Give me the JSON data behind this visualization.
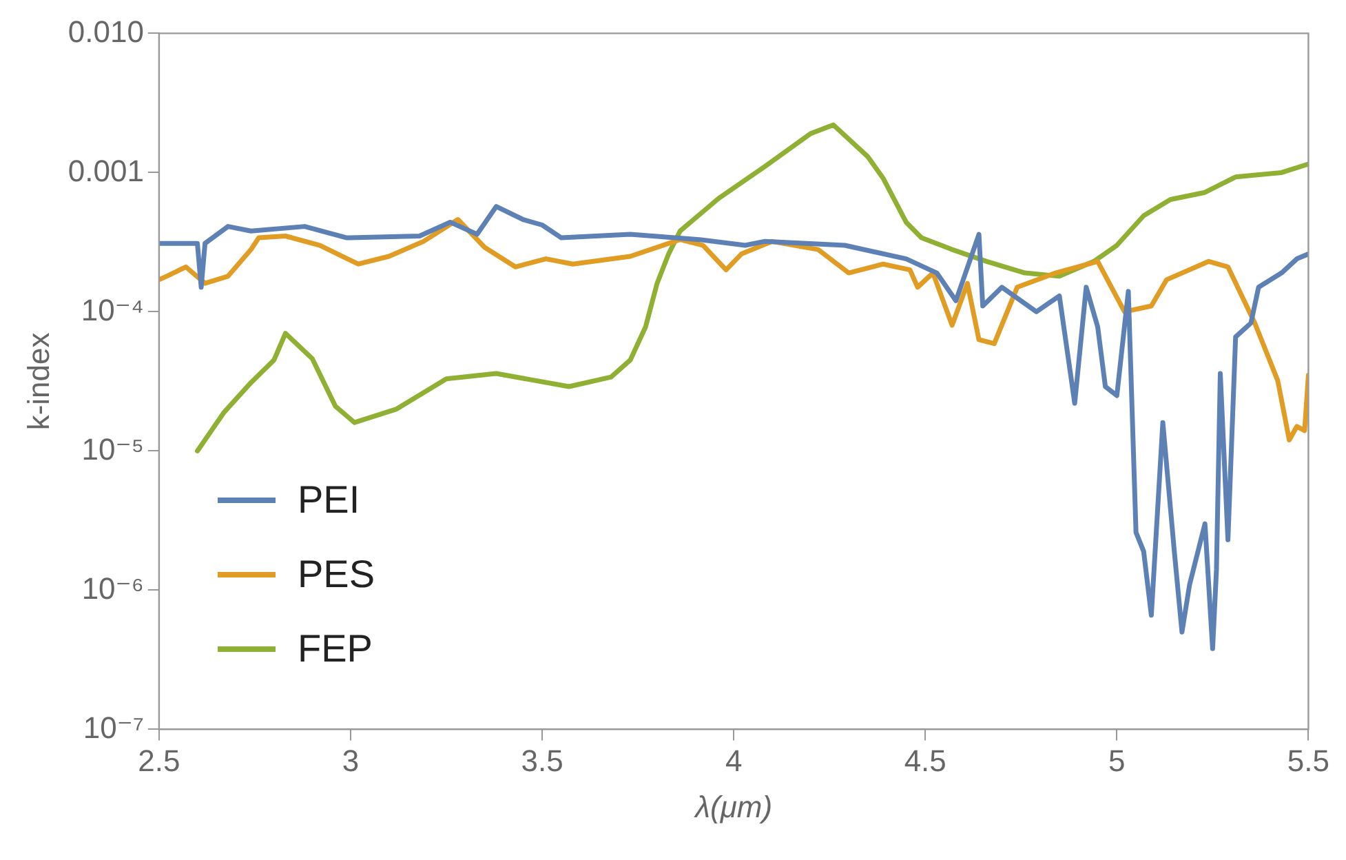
{
  "chart_data": {
    "type": "line",
    "xlabel": "λ(μm)",
    "ylabel": "k-index",
    "log": "y",
    "grid": false,
    "legend": "bottom left",
    "marker": "none",
    "line_style": "solid",
    "xlim": [
      2.5,
      5.5
    ],
    "xticks": [
      2.5,
      3,
      3.5,
      4,
      4.5,
      5,
      5.5
    ],
    "ylim": [
      1e-07,
      0.01
    ],
    "yticks": [
      {
        "value": 0.01,
        "label": "0.010"
      },
      {
        "value": 0.001,
        "label": "0.001"
      },
      {
        "value": 0.0001,
        "label": "10⁻⁴"
      },
      {
        "value": 1e-05,
        "label": "10⁻⁵"
      },
      {
        "value": 1e-06,
        "label": "10⁻⁶"
      },
      {
        "value": 1e-07,
        "label": "10⁻⁷"
      }
    ],
    "series": [
      {
        "name": "PEI",
        "color": "#5e81b5",
        "x": [
          2.5,
          2.52,
          2.6,
          2.61,
          2.62,
          2.68,
          2.74,
          2.88,
          2.99,
          3.18,
          3.26,
          3.33,
          3.38,
          3.45,
          3.5,
          3.55,
          3.73,
          3.91,
          4.03,
          4.08,
          4.29,
          4.45,
          4.53,
          4.58,
          4.64,
          4.65,
          4.7,
          4.79,
          4.85,
          4.89,
          4.92,
          4.95,
          4.97,
          5.0,
          5.03,
          5.05,
          5.07,
          5.09,
          5.12,
          5.15,
          5.17,
          5.19,
          5.23,
          5.25,
          5.26,
          5.27,
          5.29,
          5.31,
          5.35,
          5.37,
          5.43,
          5.47,
          5.5
        ],
        "values": [
          0.00031,
          0.00031,
          0.00031,
          0.00015,
          0.00031,
          0.00041,
          0.00038,
          0.00041,
          0.00034,
          0.00035,
          0.00044,
          0.00036,
          0.00057,
          0.00046,
          0.00042,
          0.00034,
          0.00036,
          0.00033,
          0.0003,
          0.00032,
          0.0003,
          0.00024,
          0.00019,
          0.00012,
          0.00036,
          0.00011,
          0.00015,
          0.0001,
          0.00013,
          2.2e-05,
          0.00015,
          7.8e-05,
          2.9e-05,
          2.5e-05,
          0.00014,
          2.6e-06,
          1.9e-06,
          6.6e-07,
          1.6e-05,
          1.9e-06,
          5e-07,
          1.1e-06,
          3e-06,
          3.8e-07,
          1.4e-06,
          3.6e-05,
          2.3e-06,
          6.6e-05,
          8.3e-05,
          0.00015,
          0.00019,
          0.00024,
          0.00026
        ]
      },
      {
        "name": "PES",
        "color": "#e19c24",
        "x": [
          2.5,
          2.52,
          2.57,
          2.62,
          2.68,
          2.74,
          2.76,
          2.83,
          2.92,
          3.02,
          3.1,
          3.19,
          3.28,
          3.35,
          3.43,
          3.51,
          3.58,
          3.73,
          3.86,
          3.92,
          3.98,
          4.02,
          4.1,
          4.22,
          4.3,
          4.39,
          4.46,
          4.48,
          4.52,
          4.57,
          4.61,
          4.64,
          4.68,
          4.74,
          4.84,
          4.95,
          5.02,
          5.09,
          5.13,
          5.24,
          5.29,
          5.36,
          5.42,
          5.45,
          5.47,
          5.49,
          5.5
        ],
        "values": [
          0.00017,
          0.00018,
          0.00021,
          0.00016,
          0.00018,
          0.00028,
          0.00034,
          0.00035,
          0.0003,
          0.00022,
          0.00025,
          0.00032,
          0.00046,
          0.00029,
          0.00021,
          0.00024,
          0.00022,
          0.00025,
          0.00033,
          0.0003,
          0.0002,
          0.00026,
          0.00032,
          0.00028,
          0.00019,
          0.00022,
          0.0002,
          0.00015,
          0.00019,
          8e-05,
          0.00016,
          6.3e-05,
          5.9e-05,
          0.00015,
          0.00019,
          0.00023,
          0.0001,
          0.00011,
          0.00017,
          0.00023,
          0.00021,
          8.3e-05,
          3.2e-05,
          1.2e-05,
          1.5e-05,
          1.4e-05,
          3.5e-05
        ]
      },
      {
        "name": "FEP",
        "color": "#8fb032",
        "x": [
          2.6,
          2.67,
          2.74,
          2.8,
          2.83,
          2.9,
          2.96,
          3.01,
          3.12,
          3.25,
          3.38,
          3.57,
          3.68,
          3.73,
          3.77,
          3.8,
          3.83,
          3.86,
          3.96,
          4.08,
          4.2,
          4.26,
          4.35,
          4.39,
          4.45,
          4.49,
          4.57,
          4.66,
          4.76,
          4.85,
          4.94,
          5.0,
          5.07,
          5.14,
          5.23,
          5.31,
          5.43,
          5.5
        ],
        "values": [
          1e-05,
          1.9e-05,
          3.1e-05,
          4.5e-05,
          7e-05,
          4.6e-05,
          2.1e-05,
          1.6e-05,
          2e-05,
          3.3e-05,
          3.6e-05,
          2.9e-05,
          3.4e-05,
          4.5e-05,
          7.8e-05,
          0.00016,
          0.00026,
          0.00038,
          0.00065,
          0.0011,
          0.0019,
          0.0022,
          0.0013,
          0.00091,
          0.00044,
          0.00034,
          0.00028,
          0.00023,
          0.00019,
          0.00018,
          0.00023,
          0.0003,
          0.00049,
          0.00064,
          0.00072,
          0.00093,
          0.001,
          0.00115
        ]
      }
    ]
  }
}
